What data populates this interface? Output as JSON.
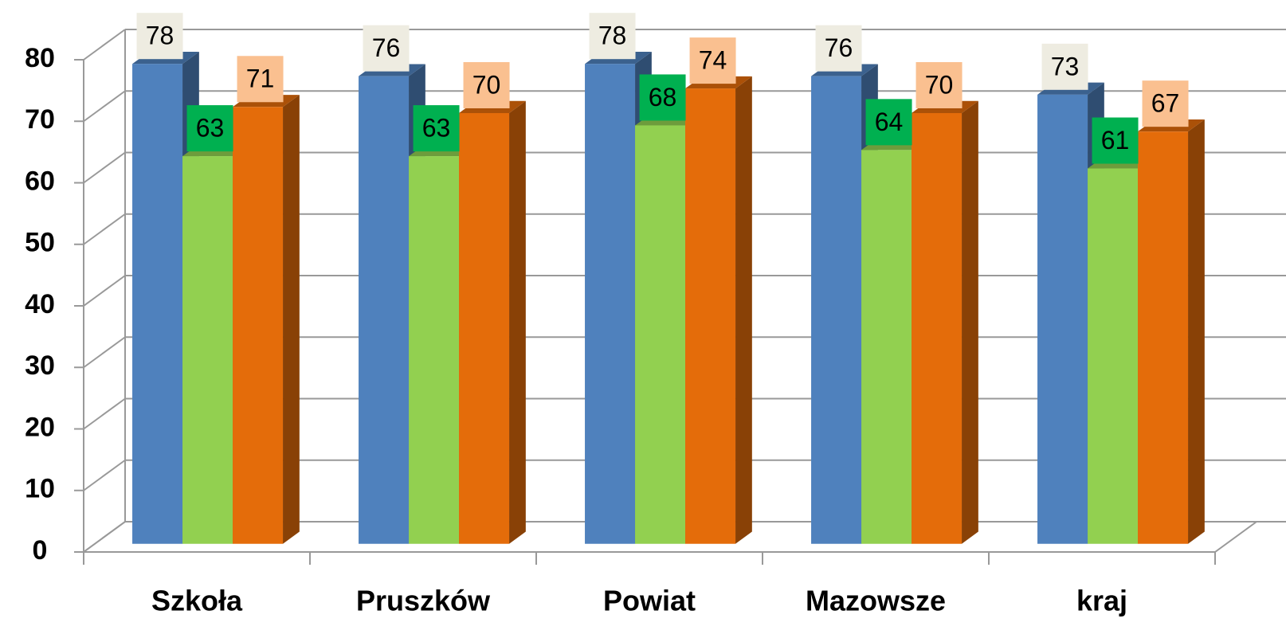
{
  "chart_data": {
    "type": "bar3d",
    "categories": [
      "Szkoła",
      "Pruszków",
      "Powiat",
      "Mazowsze",
      "kraj"
    ],
    "series": [
      {
        "color": "#4f81bd",
        "label_color": "#eeece1",
        "values": [
          78,
          76,
          78,
          76,
          73
        ]
      },
      {
        "color": "#92d050",
        "label_color": "#00b050",
        "values": [
          63,
          63,
          68,
          64,
          61
        ]
      },
      {
        "color": "#e46c0a",
        "label_color": "#fac090",
        "values": [
          71,
          70,
          74,
          70,
          67
        ]
      }
    ],
    "ylim": [
      0,
      80
    ],
    "yticks": [
      0,
      10,
      20,
      30,
      40,
      50,
      60,
      70,
      80
    ],
    "grid": true
  }
}
